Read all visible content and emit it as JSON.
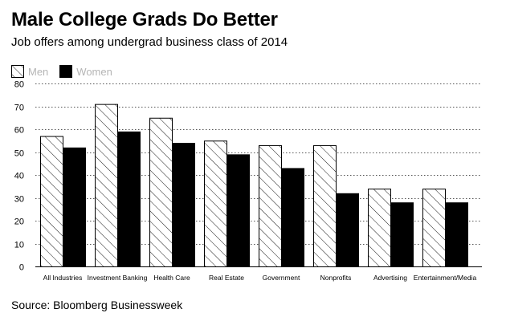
{
  "header": {
    "title": "Male College Grads Do Better",
    "subtitle": "Job offers among undergrad business class of 2014"
  },
  "footer": {
    "source": "Source: Bloomberg Businessweek"
  },
  "legend": {
    "men_label": "Men",
    "women_label": "Women"
  },
  "colors": {
    "women_fill": "#000000",
    "men_fill": "#ffffff",
    "grid": "#555555",
    "legend_text": "#b5b5b5"
  },
  "chart_data": {
    "type": "bar",
    "title": "Male College Grads Do Better",
    "subtitle": "Job offers among undergrad business class of 2014",
    "xlabel": "",
    "ylabel": "",
    "ylim": [
      0,
      80
    ],
    "yticks": [
      0,
      10,
      20,
      30,
      40,
      50,
      60,
      70,
      80
    ],
    "grid": true,
    "legend_position": "top-left",
    "categories": [
      "All Industries",
      "Investment Banking",
      "Health Care",
      "Real Estate",
      "Government",
      "Nonprofits",
      "Advertising",
      "Entertainment/Media"
    ],
    "series": [
      {
        "name": "Men",
        "pattern": "hatched",
        "values": [
          57,
          71,
          65,
          55,
          53,
          53,
          34,
          34
        ]
      },
      {
        "name": "Women",
        "pattern": "solid-black",
        "values": [
          52,
          59,
          54,
          49,
          43,
          32,
          28,
          28
        ]
      }
    ]
  }
}
